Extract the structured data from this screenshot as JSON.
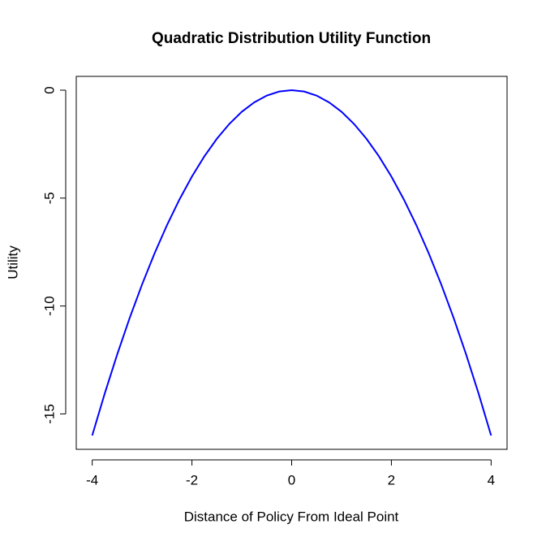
{
  "chart_data": {
    "type": "line",
    "title": "Quadratic Distribution Utility Function",
    "x_label": "Distance of Policy From Ideal Point",
    "y_label": "Utility",
    "x": [
      -4,
      -3.75,
      -3.5,
      -3.25,
      -3,
      -2.75,
      -2.5,
      -2.25,
      -2,
      -1.75,
      -1.5,
      -1.25,
      -1,
      -0.75,
      -0.5,
      -0.25,
      0,
      0.25,
      0.5,
      0.75,
      1,
      1.25,
      1.5,
      1.75,
      2,
      2.25,
      2.5,
      2.75,
      3,
      3.25,
      3.5,
      3.75,
      4
    ],
    "values": [
      -16,
      -14.0625,
      -12.25,
      -10.5625,
      -9,
      -7.5625,
      -6.25,
      -5.0625,
      -4,
      -3.0625,
      -2.25,
      -1.5625,
      -1,
      -0.5625,
      -0.25,
      -0.0625,
      0,
      -0.0625,
      -0.25,
      -0.5625,
      -1,
      -1.5625,
      -2.25,
      -3.0625,
      -4,
      -5.0625,
      -6.25,
      -7.5625,
      -9,
      -10.5625,
      -12.25,
      -14.0625,
      -16
    ],
    "color": "#0000ff",
    "xlim": [
      -4.32,
      4.32
    ],
    "xticks": [
      -4,
      -2,
      0,
      2,
      4
    ],
    "ylim": [
      -16.64,
      0.64
    ],
    "yticks": [
      0,
      -5,
      -10,
      -15
    ],
    "grid": false
  }
}
